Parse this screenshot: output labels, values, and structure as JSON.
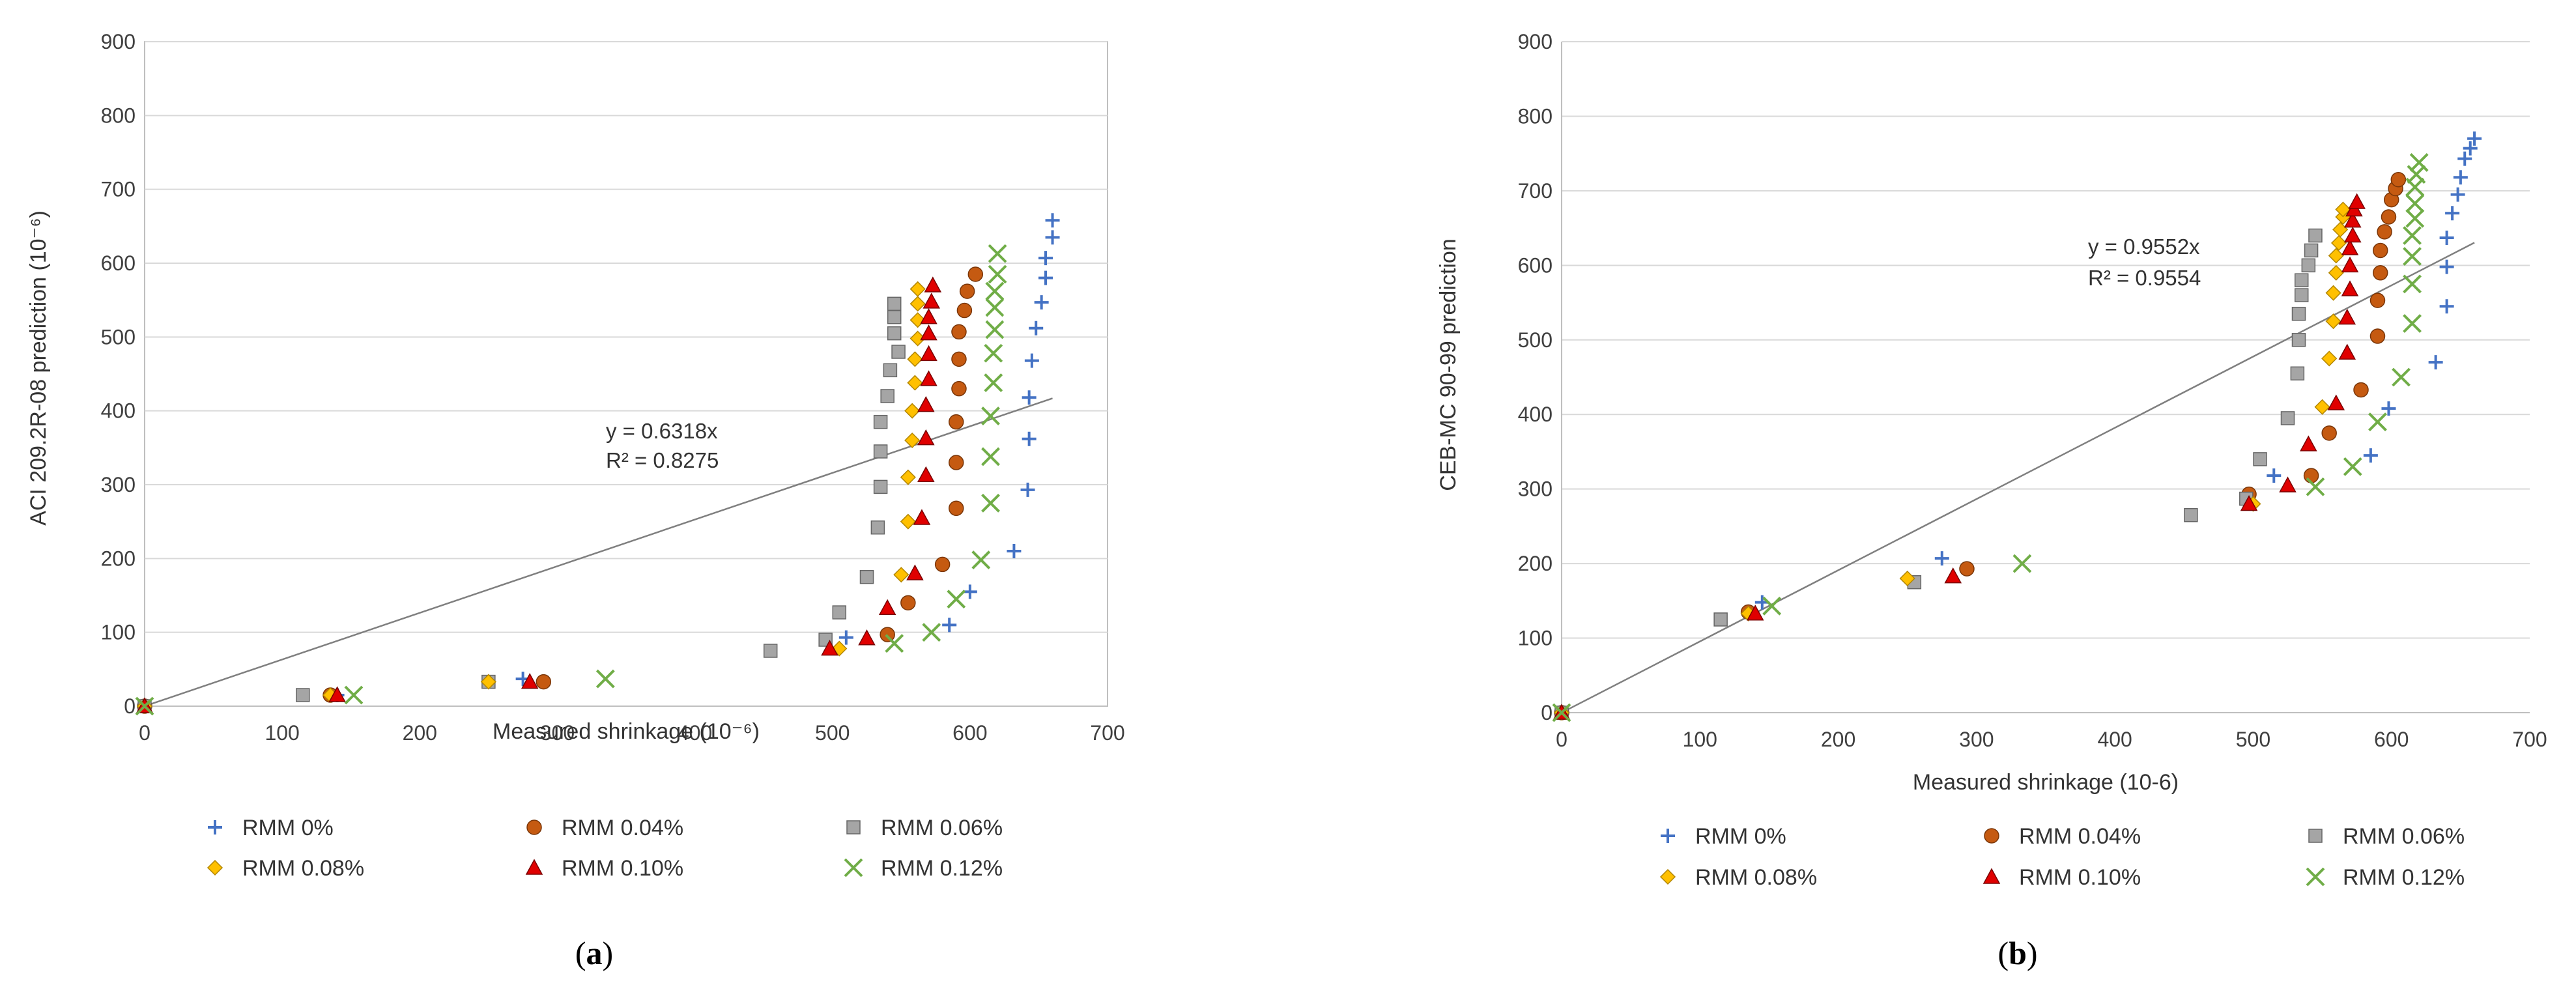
{
  "series_styles": [
    {
      "name": "RMM 0%",
      "marker": "plus",
      "color": "#4472C4"
    },
    {
      "name": "RMM 0.04%",
      "marker": "circle",
      "color": "#C55A11"
    },
    {
      "name": "RMM 0.06%",
      "marker": "square",
      "color": "#A5A5A5"
    },
    {
      "name": "RMM 0.08%",
      "marker": "diamond",
      "color": "#FFC000"
    },
    {
      "name": "RMM 0.10%",
      "marker": "triangle",
      "color": "#E00000"
    },
    {
      "name": "RMM 0.12%",
      "marker": "x",
      "color": "#70AD47"
    }
  ],
  "chart_data": [
    {
      "type": "scatter",
      "panel_label": "a",
      "xlabel": "Measured shrinkage (10⁻⁶)",
      "ylabel": "ACI 209.2R-08 prediction (10⁻⁶)",
      "xlim": [
        0,
        700
      ],
      "ylim": [
        0,
        900
      ],
      "xticks": [
        "0",
        "100",
        "200",
        "300",
        "400",
        "500",
        "600",
        "700"
      ],
      "yticks": [
        "0",
        "100",
        "200",
        "300",
        "400",
        "500",
        "600",
        "700",
        "800",
        "900"
      ],
      "grid": "horizontal",
      "trendline": {
        "slope": 0.6318,
        "equation": "y = 0.6318x",
        "r2": "R² = 0.8275"
      },
      "series": [
        {
          "name": "RMM 0%",
          "points": [
            [
              0,
              0
            ],
            [
              140,
              15
            ],
            [
              275,
              37
            ],
            [
              510,
              93
            ],
            [
              585,
              110
            ],
            [
              600,
              155
            ],
            [
              632,
              210
            ],
            [
              642,
              293
            ],
            [
              643,
              362
            ],
            [
              643,
              418
            ],
            [
              645,
              468
            ],
            [
              648,
              512
            ],
            [
              652,
              547
            ],
            [
              655,
              580
            ],
            [
              655,
              607
            ],
            [
              660,
              635
            ],
            [
              660,
              658
            ]
          ]
        },
        {
          "name": "RMM 0.04%",
          "points": [
            [
              0,
              0
            ],
            [
              135,
              15
            ],
            [
              290,
              33
            ],
            [
              540,
              97
            ],
            [
              555,
              140
            ],
            [
              580,
              192
            ],
            [
              590,
              268
            ],
            [
              590,
              330
            ],
            [
              590,
              385
            ],
            [
              592,
              430
            ],
            [
              592,
              470
            ],
            [
              592,
              507
            ],
            [
              596,
              536
            ],
            [
              598,
              562
            ],
            [
              604,
              585
            ]
          ]
        },
        {
          "name": "RMM 0.06%",
          "points": [
            [
              0,
              0
            ],
            [
              115,
              15
            ],
            [
              250,
              33
            ],
            [
              455,
              75
            ],
            [
              495,
              90
            ],
            [
              505,
              127
            ],
            [
              525,
              175
            ],
            [
              533,
              242
            ],
            [
              535,
              297
            ],
            [
              535,
              345
            ],
            [
              535,
              385
            ],
            [
              540,
              420
            ],
            [
              542,
              455
            ],
            [
              548,
              480
            ],
            [
              545,
              505
            ],
            [
              545,
              527
            ],
            [
              545,
              545
            ]
          ]
        },
        {
          "name": "RMM 0.08%",
          "points": [
            [
              0,
              0
            ],
            [
              135,
              15
            ],
            [
              250,
              33
            ],
            [
              505,
              78
            ],
            [
              550,
              178
            ],
            [
              555,
              250
            ],
            [
              555,
              310
            ],
            [
              558,
              360
            ],
            [
              558,
              400
            ],
            [
              560,
              438
            ],
            [
              560,
              470
            ],
            [
              562,
              498
            ],
            [
              562,
              523
            ],
            [
              562,
              545
            ],
            [
              562,
              565
            ]
          ]
        },
        {
          "name": "RMM 0.10%",
          "points": [
            [
              0,
              0
            ],
            [
              140,
              15
            ],
            [
              280,
              33
            ],
            [
              498,
              78
            ],
            [
              525,
              92
            ],
            [
              540,
              133
            ],
            [
              560,
              180
            ],
            [
              565,
              255
            ],
            [
              568,
              313
            ],
            [
              568,
              363
            ],
            [
              568,
              408
            ],
            [
              570,
              443
            ],
            [
              570,
              477
            ],
            [
              570,
              505
            ],
            [
              570,
              527
            ],
            [
              572,
              548
            ],
            [
              573,
              570
            ]
          ]
        },
        {
          "name": "RMM 0.12%",
          "points": [
            [
              0,
              0
            ],
            [
              152,
              15
            ],
            [
              335,
              37
            ],
            [
              545,
              85
            ],
            [
              572,
              100
            ],
            [
              590,
              145
            ],
            [
              608,
              198
            ],
            [
              615,
              275
            ],
            [
              615,
              338
            ],
            [
              615,
              393
            ],
            [
              617,
              438
            ],
            [
              617,
              478
            ],
            [
              618,
              510
            ],
            [
              618,
              540
            ],
            [
              618,
              562
            ],
            [
              620,
              585
            ],
            [
              620,
              613
            ]
          ]
        }
      ]
    },
    {
      "type": "scatter",
      "panel_label": "b",
      "xlabel": "Measured shrinkage (10-6)",
      "ylabel": "CEB-MC 90-99 prediction",
      "xlim": [
        0,
        700
      ],
      "ylim": [
        0,
        900
      ],
      "xticks": [
        "0",
        "100",
        "200",
        "300",
        "400",
        "500",
        "600",
        "700"
      ],
      "yticks": [
        "0",
        "100",
        "200",
        "300",
        "400",
        "500",
        "600",
        "700",
        "800",
        "900"
      ],
      "grid": "horizontal",
      "trendline": {
        "slope": 0.9552,
        "equation": "y = 0.9552x",
        "r2": "R² = 0.9554"
      },
      "series": [
        {
          "name": "RMM 0%",
          "points": [
            [
              0,
              0
            ],
            [
              145,
              148
            ],
            [
              275,
              207
            ],
            [
              515,
              318
            ],
            [
              585,
              345
            ],
            [
              598,
              408
            ],
            [
              632,
              470
            ],
            [
              640,
              545
            ],
            [
              640,
              598
            ],
            [
              640,
              637
            ],
            [
              644,
              670
            ],
            [
              648,
              695
            ],
            [
              650,
              718
            ],
            [
              653,
              743
            ],
            [
              657,
              757
            ],
            [
              660,
              770
            ]
          ]
        },
        {
          "name": "RMM 0.04%",
          "points": [
            [
              0,
              0
            ],
            [
              135,
              135
            ],
            [
              293,
              193
            ],
            [
              497,
              293
            ],
            [
              542,
              318
            ],
            [
              555,
              375
            ],
            [
              578,
              433
            ],
            [
              590,
              505
            ],
            [
              590,
              553
            ],
            [
              592,
              590
            ],
            [
              592,
              620
            ],
            [
              595,
              645
            ],
            [
              598,
              665
            ],
            [
              600,
              688
            ],
            [
              603,
              703
            ],
            [
              605,
              715
            ]
          ]
        },
        {
          "name": "RMM 0.06%",
          "points": [
            [
              0,
              0
            ],
            [
              115,
              125
            ],
            [
              255,
              175
            ],
            [
              455,
              265
            ],
            [
              495,
              287
            ],
            [
              505,
              340
            ],
            [
              525,
              395
            ],
            [
              532,
              455
            ],
            [
              533,
              500
            ],
            [
              533,
              535
            ],
            [
              535,
              560
            ],
            [
              535,
              580
            ],
            [
              540,
              600
            ],
            [
              542,
              620
            ],
            [
              545,
              640
            ]
          ]
        },
        {
          "name": "RMM 0.08%",
          "points": [
            [
              0,
              0
            ],
            [
              135,
              133
            ],
            [
              250,
              180
            ],
            [
              500,
              280
            ],
            [
              550,
              410
            ],
            [
              555,
              475
            ],
            [
              558,
              525
            ],
            [
              558,
              563
            ],
            [
              560,
              590
            ],
            [
              560,
              613
            ],
            [
              562,
              630
            ],
            [
              563,
              648
            ],
            [
              565,
              665
            ],
            [
              565,
              675
            ]
          ]
        },
        {
          "name": "RMM 0.10%",
          "points": [
            [
              0,
              0
            ],
            [
              140,
              133
            ],
            [
              283,
              183
            ],
            [
              497,
              280
            ],
            [
              525,
              305
            ],
            [
              540,
              360
            ],
            [
              560,
              415
            ],
            [
              568,
              483
            ],
            [
              568,
              530
            ],
            [
              570,
              568
            ],
            [
              570,
              600
            ],
            [
              570,
              623
            ],
            [
              572,
              640
            ],
            [
              572,
              660
            ],
            [
              573,
              675
            ],
            [
              575,
              685
            ]
          ]
        },
        {
          "name": "RMM 0.12%",
          "points": [
            [
              0,
              0
            ],
            [
              152,
              143
            ],
            [
              333,
              200
            ],
            [
              545,
              303
            ],
            [
              572,
              330
            ],
            [
              590,
              390
            ],
            [
              607,
              450
            ],
            [
              615,
              522
            ],
            [
              615,
              575
            ],
            [
              615,
              612
            ],
            [
              615,
              640
            ],
            [
              617,
              663
            ],
            [
              617,
              683
            ],
            [
              617,
              705
            ],
            [
              618,
              722
            ],
            [
              620,
              738
            ]
          ]
        }
      ]
    }
  ]
}
